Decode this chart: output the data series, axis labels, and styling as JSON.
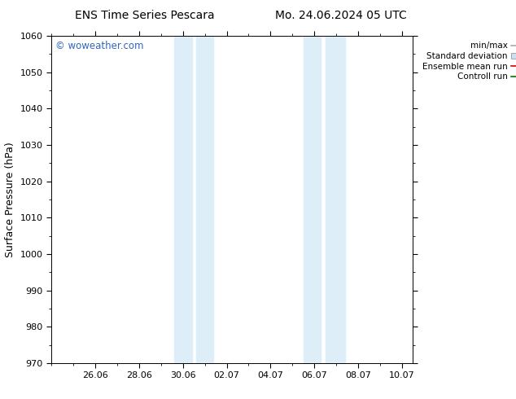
{
  "title_left": "ENS Time Series Pescara",
  "title_right": "Mo. 24.06.2024 05 UTC",
  "ylabel": "Surface Pressure (hPa)",
  "ylim": [
    970,
    1060
  ],
  "yticks": [
    970,
    980,
    990,
    1000,
    1010,
    1020,
    1030,
    1040,
    1050,
    1060
  ],
  "xtick_labels": [
    "26.06",
    "28.06",
    "30.06",
    "02.07",
    "04.07",
    "06.07",
    "08.07",
    "10.07"
  ],
  "xtick_positions": [
    2.0,
    4.0,
    6.0,
    8.0,
    10.0,
    12.0,
    14.0,
    16.0
  ],
  "xlim_left": 0.0,
  "xlim_right": 16.5,
  "shaded_bands": [
    {
      "x_start": 5.6,
      "x_end": 6.4
    },
    {
      "x_start": 6.6,
      "x_end": 7.4
    },
    {
      "x_start": 11.5,
      "x_end": 12.3
    },
    {
      "x_start": 12.5,
      "x_end": 13.4
    }
  ],
  "shaded_color": "#ddeef8",
  "background_color": "#ffffff",
  "watermark_text": "© woweather.com",
  "watermark_color": "#3366bb",
  "legend_entries": [
    {
      "label": "min/max",
      "color": "#aaaaaa",
      "lw": 1.2,
      "type": "line"
    },
    {
      "label": "Standard deviation",
      "color": "#cce0ee",
      "type": "patch"
    },
    {
      "label": "Ensemble mean run",
      "color": "#dd0000",
      "lw": 1.2,
      "type": "line"
    },
    {
      "label": "Controll run",
      "color": "#007700",
      "lw": 1.2,
      "type": "line"
    }
  ],
  "title_fontsize": 10,
  "tick_fontsize": 8,
  "ylabel_fontsize": 9,
  "legend_fontsize": 7.5
}
